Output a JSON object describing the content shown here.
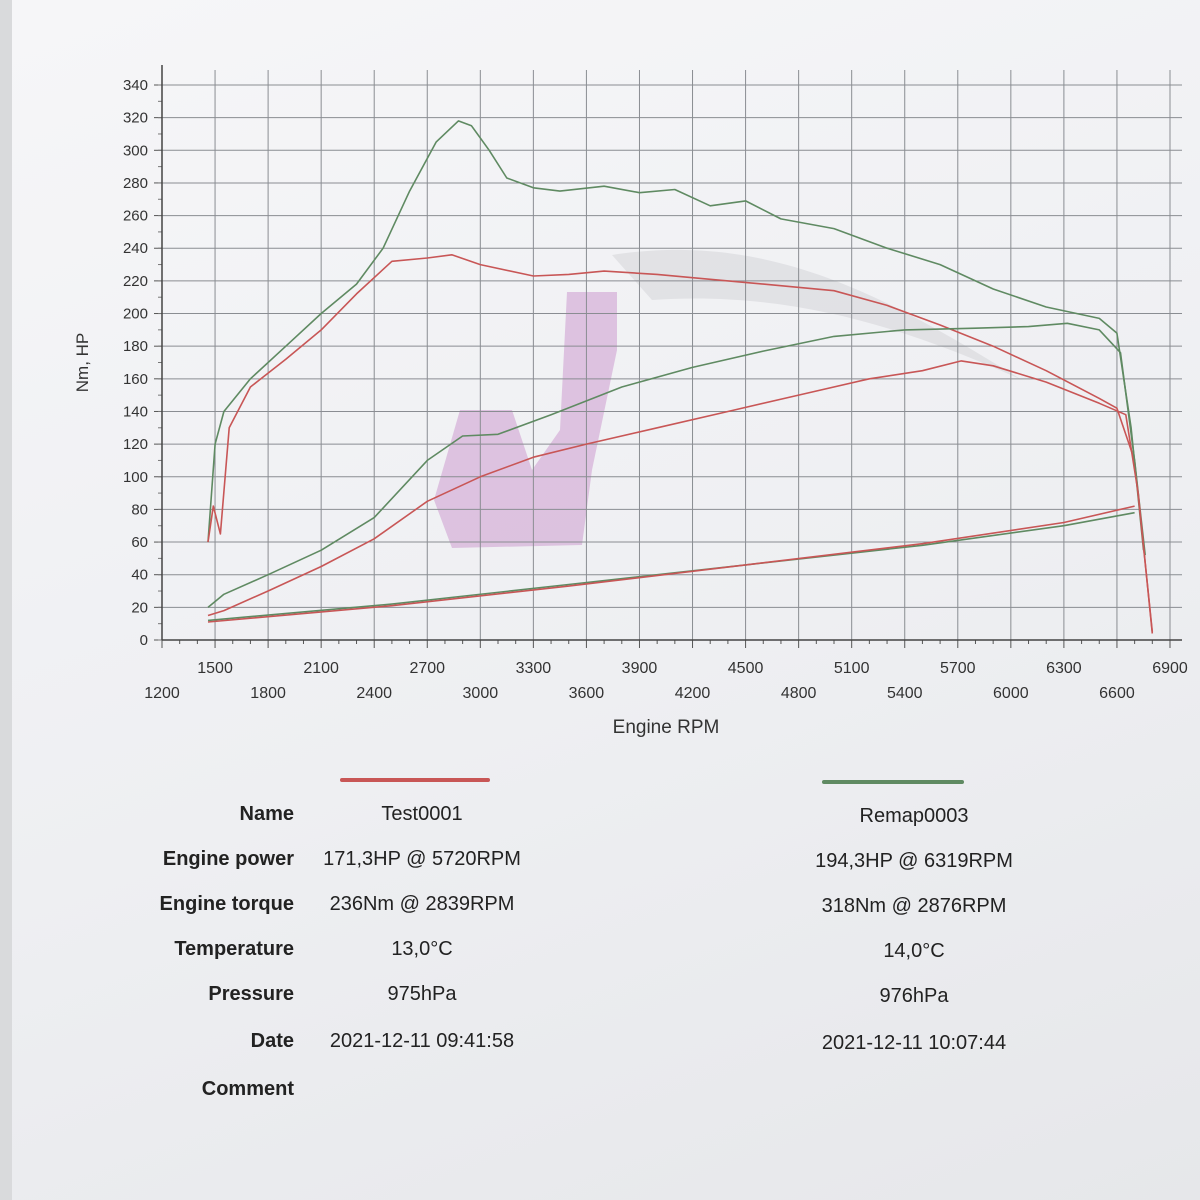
{
  "chart_data": {
    "type": "line",
    "title": "",
    "ylabel": "Nm, HP",
    "xlabel": "Engine RPM",
    "xlim": [
      1200,
      6900
    ],
    "ylim": [
      0,
      340
    ],
    "x_ticks_upper": [
      1500,
      2100,
      2700,
      3300,
      3900,
      4500,
      5100,
      5700,
      6300,
      6900
    ],
    "x_ticks_lower": [
      1200,
      1800,
      2400,
      3000,
      3600,
      4200,
      4800,
      5400,
      6000,
      6600
    ],
    "y_ticks": [
      0,
      20,
      40,
      60,
      80,
      100,
      120,
      140,
      160,
      180,
      200,
      220,
      240,
      260,
      280,
      300,
      320,
      340
    ],
    "grid": true,
    "series": [
      {
        "name": "Remap0003",
        "metric": "torque",
        "color": "#5f8a62",
        "x": [
          1460,
          1500,
          1550,
          1700,
          1900,
          2100,
          2300,
          2450,
          2600,
          2750,
          2876,
          2950,
          3050,
          3150,
          3300,
          3450,
          3700,
          3900,
          4100,
          4300,
          4500,
          4700,
          5000,
          5300,
          5600,
          5900,
          6200,
          6500,
          6600,
          6680,
          6750
        ],
        "y": [
          60,
          120,
          140,
          160,
          180,
          200,
          218,
          240,
          275,
          305,
          318,
          315,
          300,
          283,
          277,
          275,
          278,
          274,
          276,
          266,
          269,
          258,
          252,
          240,
          230,
          215,
          204,
          197,
          188,
          130,
          55
        ]
      },
      {
        "name": "Test0001",
        "metric": "torque",
        "color": "#c85656",
        "x": [
          1460,
          1490,
          1530,
          1580,
          1700,
          1900,
          2100,
          2300,
          2500,
          2700,
          2839,
          3000,
          3300,
          3500,
          3700,
          4000,
          4300,
          4600,
          5000,
          5300,
          5600,
          5900,
          6200,
          6500,
          6600,
          6700,
          6800
        ],
        "y": [
          60,
          82,
          65,
          130,
          155,
          172,
          190,
          212,
          232,
          234,
          236,
          230,
          223,
          224,
          226,
          224,
          221,
          218,
          214,
          205,
          193,
          180,
          165,
          148,
          142,
          110,
          5
        ]
      },
      {
        "name": "Remap0003",
        "metric": "power",
        "color": "#5f8a62",
        "x": [
          1460,
          1550,
          1800,
          2100,
          2400,
          2700,
          2900,
          3100,
          3400,
          3800,
          4200,
          4600,
          5000,
          5400,
          5800,
          6100,
          6319,
          6500,
          6620,
          6700,
          6760
        ],
        "y": [
          20,
          28,
          40,
          55,
          75,
          110,
          125,
          126,
          138,
          155,
          167,
          177,
          186,
          190,
          191,
          192,
          194,
          190,
          176,
          110,
          52
        ]
      },
      {
        "name": "Test0001",
        "metric": "power",
        "color": "#c85656",
        "x": [
          1460,
          1550,
          1800,
          2100,
          2400,
          2700,
          3000,
          3300,
          3600,
          4000,
          4400,
          4800,
          5200,
          5500,
          5720,
          5900,
          6200,
          6500,
          6650,
          6720,
          6800
        ],
        "y": [
          15,
          18,
          30,
          45,
          62,
          85,
          100,
          112,
          120,
          130,
          140,
          150,
          160,
          165,
          171,
          168,
          158,
          145,
          138,
          90,
          4
        ]
      },
      {
        "name": "Remap0003",
        "metric": "coastdown",
        "color": "#5f8a62",
        "x": [
          1460,
          2500,
          3500,
          4500,
          5500,
          6300,
          6700
        ],
        "y": [
          12,
          22,
          34,
          46,
          58,
          70,
          78
        ]
      },
      {
        "name": "Test0001",
        "metric": "coastdown",
        "color": "#c85656",
        "x": [
          1460,
          2500,
          3500,
          4500,
          5500,
          6300,
          6700
        ],
        "y": [
          11,
          21,
          33,
          46,
          59,
          72,
          82
        ]
      }
    ]
  },
  "legend": {
    "col1_color": "#c85656",
    "col2_color": "#5f8a62"
  },
  "table": {
    "labels": [
      "Name",
      "Engine power",
      "Engine torque",
      "Temperature",
      "Pressure",
      "Date",
      "Comment"
    ],
    "col1": [
      "Test0001",
      "171,3HP @  5720RPM",
      "236Nm @ 2839RPM",
      "13,0°C",
      "975hPa",
      "2021-12-11 09:41:58",
      ""
    ],
    "col2": [
      "Remap0003",
      "194,3HP @  6319RPM",
      "318Nm @ 2876RPM",
      "14,0°C",
      "976hPa",
      "2021-12-11 10:07:44",
      ""
    ]
  }
}
